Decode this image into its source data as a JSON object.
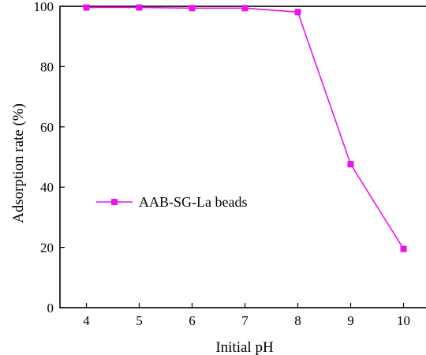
{
  "chart_data": {
    "type": "line",
    "xlabel": "Initial pH",
    "ylabel": "Adsorption rate (%)",
    "xlim": [
      3.5,
      10.5
    ],
    "ylim": [
      0,
      100
    ],
    "x_ticks": [
      4,
      5,
      6,
      7,
      8,
      9,
      10
    ],
    "y_ticks": [
      0,
      20,
      40,
      60,
      80,
      100
    ],
    "x_tick_labels": [
      "4",
      "5",
      "6",
      "7",
      "8",
      "9",
      "10"
    ],
    "y_tick_labels": [
      "0",
      "20",
      "40",
      "60",
      "80",
      "100"
    ],
    "grid": false,
    "legend_position": "center-left",
    "series": [
      {
        "name": "AAB-SG-La beads",
        "color": "#ee10ee",
        "marker": "square",
        "x": [
          4,
          5,
          6,
          7,
          8,
          9,
          10
        ],
        "y": [
          99.6,
          99.6,
          99.4,
          99.4,
          98.1,
          47.6,
          19.5
        ]
      }
    ]
  }
}
